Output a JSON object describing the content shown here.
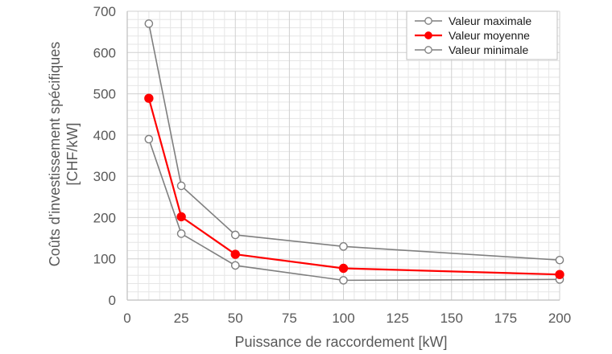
{
  "chart_data": {
    "type": "line",
    "xlabel": "Puissance de raccordement  [kW]",
    "ylabel_lines": [
      "Coûts d'investissement spécifiques",
      "[CHF/kW]"
    ],
    "xlim": [
      0,
      200
    ],
    "ylim": [
      0,
      700
    ],
    "x_ticks": [
      0,
      25,
      50,
      75,
      100,
      125,
      150,
      175,
      200
    ],
    "y_ticks": [
      0,
      100,
      200,
      300,
      400,
      500,
      600,
      700
    ],
    "x_minor_step": 5,
    "y_minor_step": 20,
    "grid": true,
    "legend_position": "top-right",
    "x": [
      10,
      25,
      50,
      100,
      200
    ],
    "series": [
      {
        "name": "Valeur maximale",
        "values": [
          670,
          277,
          158,
          130,
          97
        ],
        "color": "#7f7f7f",
        "marker": "open-circle"
      },
      {
        "name": "Valeur moyenne",
        "values": [
          489,
          202,
          111,
          77,
          62
        ],
        "color": "#ff0000",
        "marker": "filled-circle"
      },
      {
        "name": "Valeur minimale",
        "values": [
          390,
          161,
          84,
          48,
          50
        ],
        "color": "#7f7f7f",
        "marker": "open-circle"
      }
    ]
  }
}
